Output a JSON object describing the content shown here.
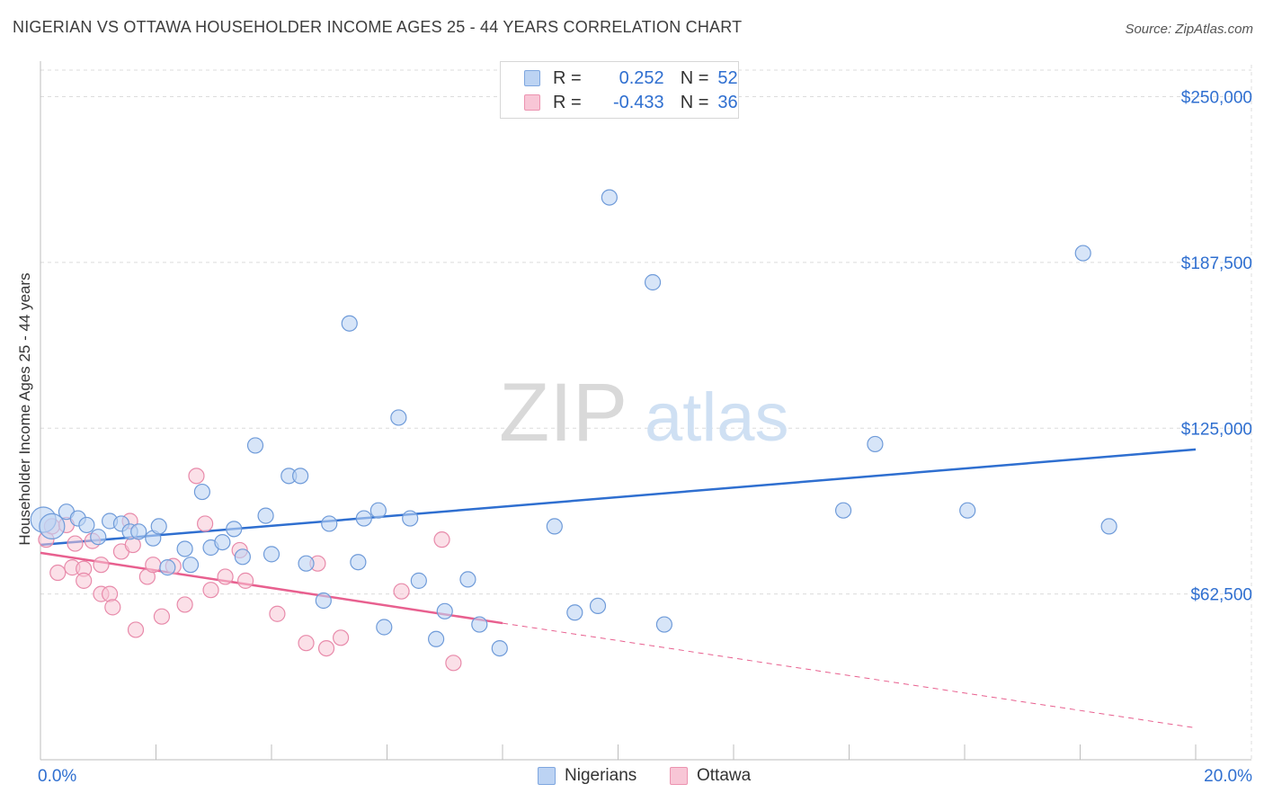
{
  "title": "NIGERIAN VS OTTAWA HOUSEHOLDER INCOME AGES 25 - 44 YEARS CORRELATION CHART",
  "source": "Source: ZipAtlas.com",
  "watermark": {
    "zip": "ZIP",
    "atlas": "atlas"
  },
  "colors": {
    "blue": "#2f6fd0",
    "blue_fill": "#bcd3f3",
    "pink": "#e8608f",
    "pink_fill": "#f8c6d6",
    "tick_label": "#2f6fd0"
  },
  "legend": {
    "rows": [
      {
        "r_label": "R =",
        "r_value": "0.252",
        "n_label": "N =",
        "n_value": "52"
      },
      {
        "r_label": "R =",
        "r_value": "-0.433",
        "n_label": "N =",
        "n_value": "36"
      }
    ]
  },
  "bottom_legend": {
    "series1": "Nigerians",
    "series2": "Ottawa"
  },
  "chart_data": {
    "type": "scatter",
    "title": "NIGERIAN VS OTTAWA HOUSEHOLDER INCOME AGES 25 - 44 YEARS CORRELATION CHART",
    "xlabel": "",
    "ylabel": "Householder Income Ages 25 - 44 years",
    "xlim": [
      0,
      20
    ],
    "ylim": [
      0,
      260000
    ],
    "x_tick_labels": [
      "0.0%",
      "20.0%"
    ],
    "y_ticks": [
      62500,
      125000,
      187500,
      250000
    ],
    "y_tick_labels": [
      "$62,500",
      "$125,000",
      "$187,500",
      "$250,000"
    ],
    "grid": true,
    "legend_position": "top-center",
    "series": [
      {
        "name": "Nigerians",
        "r": 0.252,
        "n": 52,
        "trend": {
          "x": [
            0,
            20
          ],
          "y": [
            81000,
            117000
          ],
          "dashed_extension": false
        },
        "points": [
          {
            "x": 0.05,
            "y": 90500,
            "big": true
          },
          {
            "x": 0.2,
            "y": 88000,
            "big": true
          },
          {
            "x": 0.45,
            "y": 93500
          },
          {
            "x": 0.65,
            "y": 91000
          },
          {
            "x": 0.8,
            "y": 88500
          },
          {
            "x": 1.0,
            "y": 84000
          },
          {
            "x": 1.2,
            "y": 90000
          },
          {
            "x": 1.4,
            "y": 89000
          },
          {
            "x": 1.55,
            "y": 86000
          },
          {
            "x": 1.7,
            "y": 86000
          },
          {
            "x": 1.95,
            "y": 83500
          },
          {
            "x": 2.05,
            "y": 88000
          },
          {
            "x": 2.2,
            "y": 72500
          },
          {
            "x": 2.5,
            "y": 79500
          },
          {
            "x": 2.6,
            "y": 73500
          },
          {
            "x": 2.8,
            "y": 101000
          },
          {
            "x": 2.95,
            "y": 80000
          },
          {
            "x": 3.15,
            "y": 82000
          },
          {
            "x": 3.35,
            "y": 87000
          },
          {
            "x": 3.5,
            "y": 76500
          },
          {
            "x": 3.72,
            "y": 118500
          },
          {
            "x": 3.9,
            "y": 92000
          },
          {
            "x": 4.0,
            "y": 77500
          },
          {
            "x": 4.3,
            "y": 107000
          },
          {
            "x": 4.5,
            "y": 107000
          },
          {
            "x": 4.6,
            "y": 74000
          },
          {
            "x": 4.9,
            "y": 60000
          },
          {
            "x": 5.0,
            "y": 89000
          },
          {
            "x": 5.35,
            "y": 164500
          },
          {
            "x": 5.5,
            "y": 74500
          },
          {
            "x": 5.6,
            "y": 91000
          },
          {
            "x": 5.85,
            "y": 94000
          },
          {
            "x": 5.95,
            "y": 50000
          },
          {
            "x": 6.2,
            "y": 129000
          },
          {
            "x": 6.4,
            "y": 91000
          },
          {
            "x": 6.55,
            "y": 67500
          },
          {
            "x": 6.85,
            "y": 45500
          },
          {
            "x": 7.0,
            "y": 56000
          },
          {
            "x": 7.4,
            "y": 68000
          },
          {
            "x": 7.6,
            "y": 51000
          },
          {
            "x": 7.95,
            "y": 42000
          },
          {
            "x": 8.9,
            "y": 88000
          },
          {
            "x": 9.25,
            "y": 55500
          },
          {
            "x": 9.65,
            "y": 58000
          },
          {
            "x": 9.85,
            "y": 212000
          },
          {
            "x": 10.6,
            "y": 180000
          },
          {
            "x": 10.8,
            "y": 51000
          },
          {
            "x": 13.9,
            "y": 94000
          },
          {
            "x": 14.45,
            "y": 119000
          },
          {
            "x": 16.05,
            "y": 94000
          },
          {
            "x": 18.05,
            "y": 191000
          },
          {
            "x": 18.5,
            "y": 88000
          }
        ]
      },
      {
        "name": "Ottawa",
        "r": -0.433,
        "n": 36,
        "trend": {
          "x": [
            0,
            8
          ],
          "y": [
            78000,
            51500
          ],
          "dashed_extension": {
            "x": [
              8,
              20
            ],
            "y": [
              51500,
              12000
            ]
          }
        },
        "points": [
          {
            "x": 0.1,
            "y": 83000
          },
          {
            "x": 0.2,
            "y": 88000
          },
          {
            "x": 0.3,
            "y": 70500
          },
          {
            "x": 0.45,
            "y": 88500
          },
          {
            "x": 0.55,
            "y": 72500
          },
          {
            "x": 0.6,
            "y": 81500
          },
          {
            "x": 0.75,
            "y": 72000
          },
          {
            "x": 0.75,
            "y": 67500
          },
          {
            "x": 0.9,
            "y": 82500
          },
          {
            "x": 1.05,
            "y": 73500
          },
          {
            "x": 1.05,
            "y": 62500
          },
          {
            "x": 1.2,
            "y": 62500
          },
          {
            "x": 1.25,
            "y": 57500
          },
          {
            "x": 1.4,
            "y": 78500
          },
          {
            "x": 1.55,
            "y": 90000
          },
          {
            "x": 1.6,
            "y": 81000
          },
          {
            "x": 1.65,
            "y": 49000
          },
          {
            "x": 1.85,
            "y": 69000
          },
          {
            "x": 1.95,
            "y": 73500
          },
          {
            "x": 2.1,
            "y": 54000
          },
          {
            "x": 2.3,
            "y": 73000
          },
          {
            "x": 2.5,
            "y": 58500
          },
          {
            "x": 2.7,
            "y": 107000
          },
          {
            "x": 2.85,
            "y": 89000
          },
          {
            "x": 2.95,
            "y": 64000
          },
          {
            "x": 3.2,
            "y": 69000
          },
          {
            "x": 3.45,
            "y": 79000
          },
          {
            "x": 3.55,
            "y": 67500
          },
          {
            "x": 4.1,
            "y": 55000
          },
          {
            "x": 4.6,
            "y": 44000
          },
          {
            "x": 4.8,
            "y": 74000
          },
          {
            "x": 4.95,
            "y": 42000
          },
          {
            "x": 5.2,
            "y": 46000
          },
          {
            "x": 6.25,
            "y": 63500
          },
          {
            "x": 6.95,
            "y": 83000
          },
          {
            "x": 7.15,
            "y": 36500
          }
        ]
      }
    ]
  }
}
